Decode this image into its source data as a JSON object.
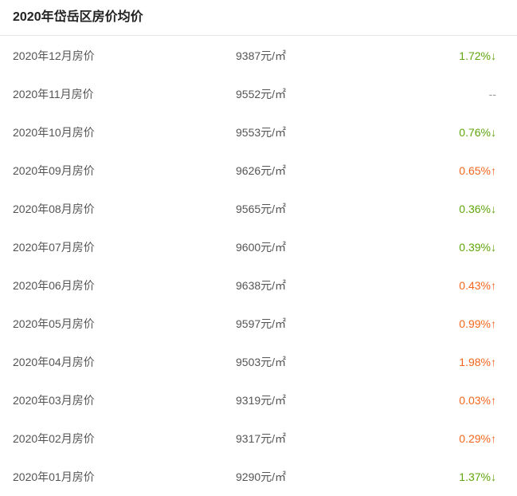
{
  "title": "2020年岱岳区房价均价",
  "colors": {
    "down": "#5fa50c",
    "up": "#f4661c",
    "none": "#999999"
  },
  "rows": [
    {
      "month": "2020年12月房价",
      "price": "9387元/㎡",
      "change": "1.72%↓",
      "dir": "down"
    },
    {
      "month": "2020年11月房价",
      "price": "9552元/㎡",
      "change": "--",
      "dir": "none"
    },
    {
      "month": "2020年10月房价",
      "price": "9553元/㎡",
      "change": "0.76%↓",
      "dir": "down"
    },
    {
      "month": "2020年09月房价",
      "price": "9626元/㎡",
      "change": "0.65%↑",
      "dir": "up"
    },
    {
      "month": "2020年08月房价",
      "price": "9565元/㎡",
      "change": "0.36%↓",
      "dir": "down"
    },
    {
      "month": "2020年07月房价",
      "price": "9600元/㎡",
      "change": "0.39%↓",
      "dir": "down"
    },
    {
      "month": "2020年06月房价",
      "price": "9638元/㎡",
      "change": "0.43%↑",
      "dir": "up"
    },
    {
      "month": "2020年05月房价",
      "price": "9597元/㎡",
      "change": "0.99%↑",
      "dir": "up"
    },
    {
      "month": "2020年04月房价",
      "price": "9503元/㎡",
      "change": "1.98%↑",
      "dir": "up"
    },
    {
      "month": "2020年03月房价",
      "price": "9319元/㎡",
      "change": "0.03%↑",
      "dir": "up"
    },
    {
      "month": "2020年02月房价",
      "price": "9317元/㎡",
      "change": "0.29%↑",
      "dir": "up"
    },
    {
      "month": "2020年01月房价",
      "price": "9290元/㎡",
      "change": "1.37%↓",
      "dir": "down"
    }
  ]
}
